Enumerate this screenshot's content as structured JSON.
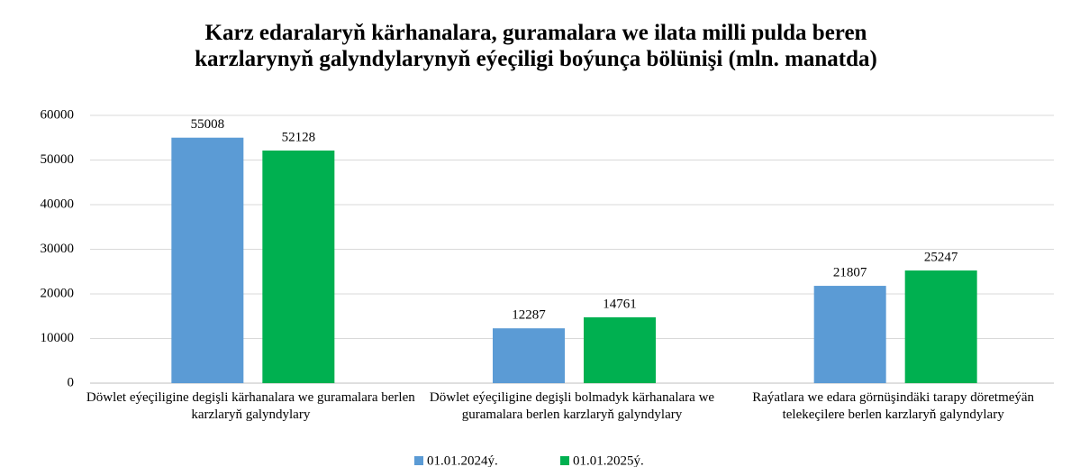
{
  "chart_data": {
    "type": "bar",
    "title": "Karz edaralaryň kärhanalara, guramalara we ilata milli pulda beren karzlarynyň galyndylarynyň eýeçiligi boýunça bölünişi (mln. manatda)",
    "categories": [
      "Döwlet eýeçiligine degişli kärhanalara we guramalara berlen karzlaryň galyndylary",
      "Döwlet eýeçiligine degişli bolmadyk kärhanalara we guramalara berlen karzlaryň galyndylary",
      "Raýatlara we edara görnüşindäki tarapy döretmeýän telekeçilere berlen karzlaryň galyndylary"
    ],
    "series": [
      {
        "name": "01.01.2024ý.",
        "color": "#5b9bd5",
        "values": [
          55008,
          12287,
          21807
        ]
      },
      {
        "name": "01.01.2025ý.",
        "color": "#00b050",
        "values": [
          52128,
          14761,
          25247
        ]
      }
    ],
    "ylim": [
      0,
      60000
    ],
    "yticks": [
      0,
      10000,
      20000,
      30000,
      40000,
      50000,
      60000
    ],
    "grid": true,
    "legend": "bottom"
  }
}
